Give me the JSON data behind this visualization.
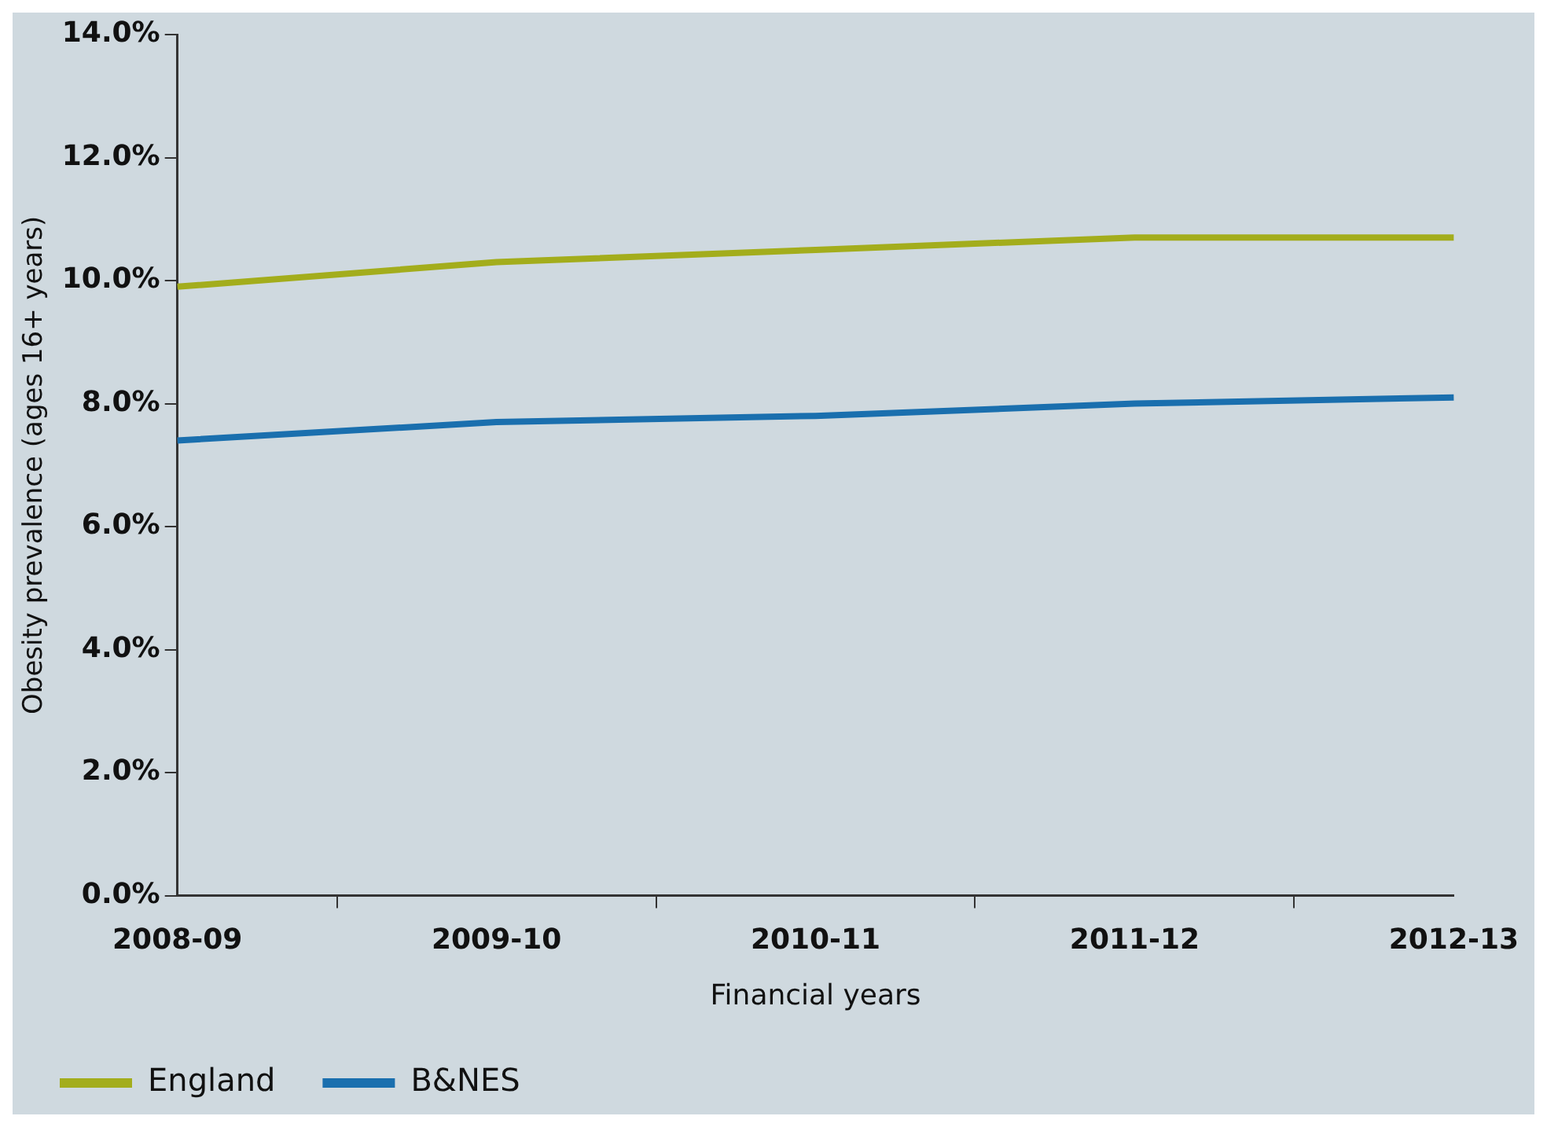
{
  "chart_data": {
    "type": "line",
    "xlabel": "Financial years",
    "ylabel": "Obesity prevalence (ages 16+ years)",
    "categories": [
      "2008-09",
      "2009-10",
      "2010-11",
      "2011-12",
      "2012-13"
    ],
    "series": [
      {
        "name": "England",
        "color": "#a3ad1c",
        "values": [
          9.9,
          10.3,
          10.5,
          10.7,
          10.7
        ]
      },
      {
        "name": "B&NES",
        "color": "#1a6fae",
        "values": [
          7.4,
          7.7,
          7.8,
          8.0,
          8.1
        ]
      }
    ],
    "ylim": [
      0,
      14
    ],
    "yticks": [
      {
        "value": 0,
        "label": "0.0%"
      },
      {
        "value": 2,
        "label": "2.0%"
      },
      {
        "value": 4,
        "label": "4.0%"
      },
      {
        "value": 6,
        "label": "6.0%"
      },
      {
        "value": 8,
        "label": "8.0%"
      },
      {
        "value": 10,
        "label": "10.0%"
      },
      {
        "value": 12,
        "label": "12.0%"
      },
      {
        "value": 14,
        "label": "14.0%"
      }
    ],
    "grid": false,
    "legend": "bottom left",
    "marker": "none",
    "line_style": "solid"
  }
}
